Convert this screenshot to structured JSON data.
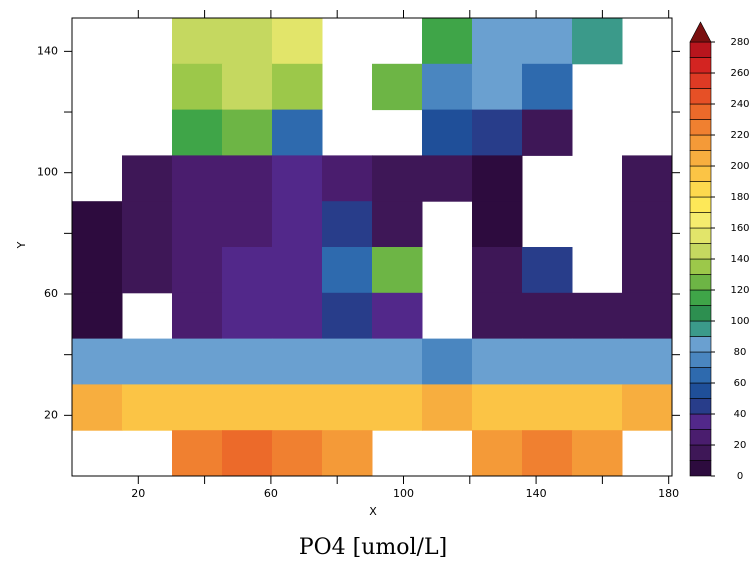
{
  "chart_data": {
    "type": "heatmap",
    "title": "PO4 [umol/L]",
    "x_label": "X",
    "y_label": "Y",
    "xlim": [
      0,
      181
    ],
    "ylim": [
      0,
      151
    ],
    "xticks": [
      20,
      60,
      100,
      140,
      180
    ],
    "minor_xticks": [
      40,
      80,
      120,
      160
    ],
    "yticks": [
      20,
      60,
      100,
      140
    ],
    "minor_yticks": [
      40,
      80,
      120
    ],
    "values": [
      [
        null,
        null,
        140,
        140,
        150,
        null,
        null,
        110,
        80,
        80,
        90,
        null
      ],
      [
        null,
        null,
        130,
        140,
        130,
        null,
        120,
        70,
        80,
        60,
        null,
        null
      ],
      [
        null,
        null,
        110,
        120,
        60,
        null,
        null,
        50,
        40,
        10,
        null,
        null
      ],
      [
        null,
        15,
        20,
        20,
        30,
        25,
        10,
        10,
        5,
        null,
        null,
        10
      ],
      [
        5,
        10,
        25,
        25,
        35,
        40,
        10,
        null,
        5,
        null,
        null,
        10
      ],
      [
        5,
        10,
        25,
        30,
        35,
        60,
        120,
        null,
        10,
        40,
        null,
        10
      ],
      [
        5,
        null,
        25,
        30,
        35,
        40,
        35,
        null,
        10,
        15,
        10,
        10
      ],
      [
        80,
        80,
        85,
        85,
        80,
        80,
        80,
        70,
        85,
        85,
        85,
        85
      ],
      [
        205,
        195,
        190,
        195,
        195,
        190,
        195,
        200,
        195,
        190,
        195,
        200
      ],
      [
        null,
        null,
        220,
        230,
        225,
        210,
        null,
        null,
        215,
        225,
        210,
        null
      ]
    ],
    "colorbar": {
      "levels": [
        0,
        10,
        20,
        30,
        40,
        50,
        60,
        70,
        80,
        90,
        100,
        110,
        120,
        130,
        140,
        150,
        160,
        170,
        180,
        190,
        200,
        210,
        220,
        230,
        240,
        250,
        260,
        270,
        280
      ],
      "colors": [
        "#2d0b3e",
        "#3e1757",
        "#4a1d6e",
        "#52288a",
        "#283d8a",
        "#1f4f99",
        "#2e6aae",
        "#4a86c0",
        "#6aa0d0",
        "#3b9a8a",
        "#2d8f50",
        "#3fa548",
        "#6db545",
        "#9cc84a",
        "#c5d860",
        "#e2e56a",
        "#f5ec6e",
        "#fde858",
        "#fdd94e",
        "#fbc445",
        "#f7ae3f",
        "#f49a38",
        "#f08030",
        "#ec6a2a",
        "#e65026",
        "#de3a24",
        "#d32421",
        "#b8151d"
      ],
      "over_color": "#7a1010",
      "ticks": [
        0,
        20,
        40,
        60,
        80,
        100,
        120,
        140,
        160,
        180,
        200,
        220,
        240,
        260,
        280
      ]
    }
  }
}
